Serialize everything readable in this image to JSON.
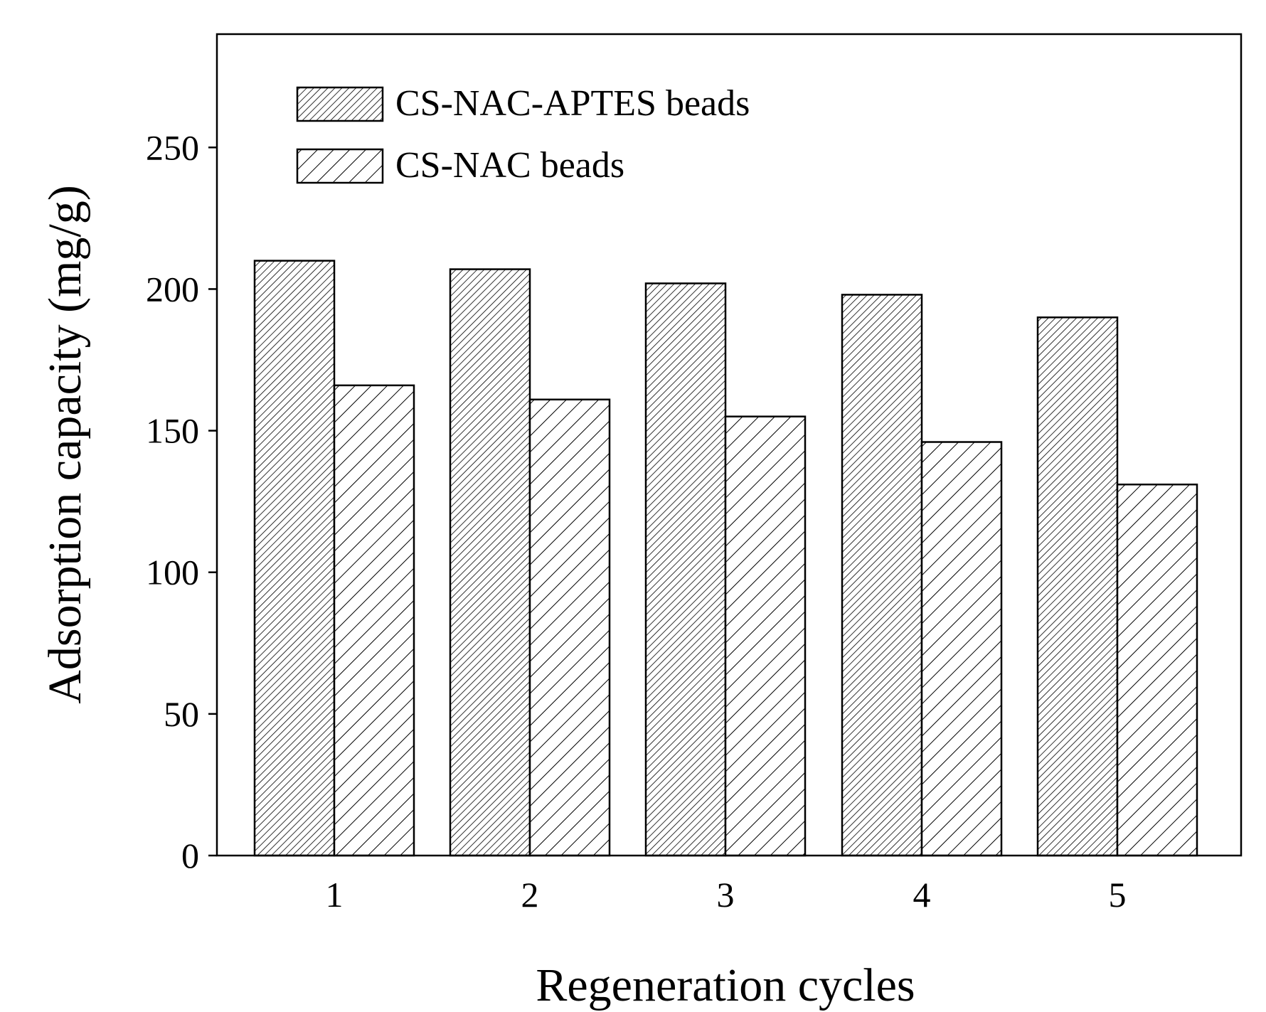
{
  "chart_data": {
    "type": "bar",
    "title": "",
    "xlabel": "Regeneration cycles",
    "ylabel": "Adsorption capacity (mg/g)",
    "categories": [
      "1",
      "2",
      "3",
      "4",
      "5"
    ],
    "series": [
      {
        "name": "CS-NAC-APTES beads",
        "values": [
          210,
          207,
          202,
          198,
          190
        ],
        "pattern": "dense-hatch"
      },
      {
        "name": "CS-NAC beads",
        "values": [
          166,
          161,
          155,
          146,
          131
        ],
        "pattern": "sparse-hatch"
      }
    ],
    "ylim": [
      0,
      290
    ],
    "yticks": [
      0,
      50,
      100,
      150,
      200,
      250
    ],
    "grid": false,
    "legend_position": "top-left",
    "colors": {
      "axis": "#000000",
      "bar_fill": "#ffffff",
      "hatch": "#000000"
    }
  }
}
